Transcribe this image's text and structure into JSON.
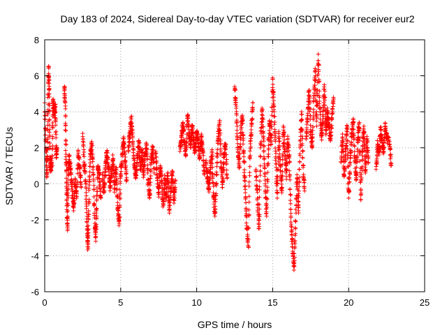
{
  "chart_data": {
    "type": "scatter",
    "title": "Day 183 of 2024, Sidereal Day-to-day VTEC variation (SDTVAR) for receiver eur2",
    "xlabel": "GPS time / hours",
    "ylabel": "SDTVAR / TECUs",
    "xlim": [
      0,
      25
    ],
    "ylim": [
      -6,
      8
    ],
    "x_ticks": [
      0,
      5,
      10,
      15,
      20,
      25
    ],
    "x_tick_labels": [
      "0",
      "5",
      "10",
      "15",
      "20",
      "25"
    ],
    "y_ticks": [
      -6,
      -4,
      -2,
      0,
      2,
      4,
      6,
      8
    ],
    "y_tick_labels": [
      "-6",
      "-4",
      "-2",
      "0",
      "2",
      "4",
      "6",
      "8"
    ],
    "grid": true,
    "marker": "+",
    "marker_color": "#ff0000",
    "grid_color": "#a0a0a0",
    "series": [
      {
        "name": "SDTVAR",
        "segments": [
          [
            [
              0.0,
              4.5
            ],
            [
              0.08,
              2.0
            ],
            [
              0.15,
              0.5
            ],
            [
              0.2,
              3.0
            ],
            [
              0.25,
              6.5
            ],
            [
              0.3,
              5.0
            ],
            [
              0.35,
              1.5
            ],
            [
              0.4,
              0.8
            ],
            [
              0.45,
              1.2
            ]
          ],
          [
            [
              0.5,
              1.0
            ],
            [
              0.55,
              4.5
            ],
            [
              0.6,
              4.2
            ],
            [
              0.65,
              3.8
            ],
            [
              0.7,
              4.4
            ],
            [
              0.75,
              1.6
            ],
            [
              0.8,
              1.9
            ]
          ],
          [
            [
              1.3,
              5.4
            ],
            [
              1.35,
              4.5
            ],
            [
              1.4,
              1.5
            ],
            [
              1.45,
              -0.5
            ],
            [
              1.5,
              -2.6
            ],
            [
              1.55,
              0.5
            ],
            [
              1.6,
              1.5
            ],
            [
              1.7,
              0.8
            ],
            [
              1.8,
              -0.3
            ],
            [
              1.9,
              -1.5
            ],
            [
              2.0,
              0.2
            ],
            [
              2.1,
              -0.8
            ],
            [
              2.2,
              1.8
            ],
            [
              2.3,
              0.9
            ],
            [
              2.4,
              -0.2
            ]
          ],
          [
            [
              2.5,
              2.8
            ],
            [
              2.6,
              1.0
            ],
            [
              2.7,
              0.0
            ],
            [
              2.8,
              -2.5
            ],
            [
              2.85,
              -3.5
            ],
            [
              2.9,
              -1.0
            ],
            [
              3.0,
              1.5
            ],
            [
              3.1,
              2.2
            ],
            [
              3.2,
              0.5
            ],
            [
              3.3,
              -2.2
            ],
            [
              3.35,
              -3.0
            ],
            [
              3.4,
              -1.5
            ],
            [
              3.5,
              1.0
            ],
            [
              3.6,
              0.3
            ],
            [
              3.7,
              -0.8
            ]
          ],
          [
            [
              3.8,
              0.5
            ],
            [
              3.9,
              -0.5
            ],
            [
              4.0,
              1.0
            ],
            [
              4.1,
              1.8
            ],
            [
              4.2,
              0.8
            ],
            [
              4.3,
              -0.2
            ],
            [
              4.4,
              0.6
            ],
            [
              4.5,
              1.4
            ],
            [
              4.6,
              -0.3
            ],
            [
              4.7,
              0.9
            ],
            [
              4.8,
              -1.2
            ],
            [
              4.9,
              -2.2
            ],
            [
              5.0,
              0.5
            ],
            [
              5.1,
              1.6
            ],
            [
              5.2,
              2.5
            ],
            [
              5.3,
              1.2
            ],
            [
              5.4,
              0.2
            ]
          ],
          [
            [
              5.5,
              1.8
            ],
            [
              5.6,
              2.8
            ],
            [
              5.7,
              3.6
            ],
            [
              5.8,
              2.2
            ],
            [
              5.9,
              1.0
            ],
            [
              6.0,
              0.3
            ],
            [
              6.1,
              1.4
            ],
            [
              6.2,
              2.4
            ],
            [
              6.3,
              0.8
            ],
            [
              6.4,
              1.9
            ],
            [
              6.5,
              0.5
            ],
            [
              6.6,
              1.5
            ],
            [
              6.7,
              2.2
            ],
            [
              6.8,
              0.2
            ],
            [
              6.9,
              -0.8
            ],
            [
              7.0,
              1.2
            ],
            [
              7.1,
              2.0
            ],
            [
              7.2,
              0.6
            ]
          ],
          [
            [
              7.3,
              1.8
            ],
            [
              7.4,
              0.5
            ],
            [
              7.5,
              -0.6
            ],
            [
              7.6,
              1.0
            ],
            [
              7.7,
              0.0
            ],
            [
              7.8,
              -1.2
            ],
            [
              7.9,
              0.3
            ],
            [
              8.0,
              -0.8
            ],
            [
              8.1,
              0.6
            ],
            [
              8.2,
              -1.5
            ],
            [
              8.3,
              -0.4
            ],
            [
              8.4,
              0.7
            ],
            [
              8.5,
              -0.9
            ],
            [
              8.6,
              0.2
            ]
          ],
          [
            [
              8.9,
              1.8
            ],
            [
              9.0,
              2.6
            ],
            [
              9.1,
              3.4
            ],
            [
              9.2,
              2.2
            ],
            [
              9.3,
              1.6
            ],
            [
              9.4,
              3.8
            ],
            [
              9.5,
              2.8
            ],
            [
              9.6,
              2.0
            ],
            [
              9.7,
              3.2
            ],
            [
              9.8,
              2.4
            ],
            [
              9.9,
              1.8
            ],
            [
              10.0,
              2.9
            ],
            [
              10.1,
              2.2
            ],
            [
              10.2,
              1.5
            ],
            [
              10.3,
              2.6
            ],
            [
              10.4,
              1.8
            ],
            [
              10.5,
              0.5
            ]
          ],
          [
            [
              10.6,
              1.2
            ],
            [
              10.7,
              0.4
            ],
            [
              10.8,
              -0.3
            ],
            [
              10.9,
              0.8
            ],
            [
              11.0,
              1.8
            ],
            [
              11.1,
              -0.5
            ],
            [
              11.2,
              -1.8
            ],
            [
              11.3,
              0.5
            ],
            [
              11.4,
              2.5
            ],
            [
              11.5,
              3.5
            ],
            [
              11.6,
              1.2
            ],
            [
              11.7,
              -0.2
            ],
            [
              11.8,
              1.6
            ],
            [
              11.9,
              2.2
            ],
            [
              12.0,
              0.3
            ]
          ],
          [
            [
              12.5,
              5.4
            ],
            [
              12.6,
              4.2
            ],
            [
              12.7,
              2.0
            ],
            [
              12.8,
              1.0
            ],
            [
              12.9,
              2.8
            ],
            [
              13.0,
              3.8
            ],
            [
              13.1,
              1.5
            ],
            [
              13.2,
              -0.5
            ],
            [
              13.3,
              -2.5
            ],
            [
              13.4,
              -3.5
            ],
            [
              13.5,
              1.5
            ],
            [
              13.6,
              3.2
            ],
            [
              13.7,
              4.5
            ]
          ],
          [
            [
              13.9,
              0.8
            ],
            [
              14.0,
              -0.8
            ],
            [
              14.1,
              -2.5
            ],
            [
              14.2,
              2.0
            ],
            [
              14.3,
              4.2
            ],
            [
              14.4,
              2.5
            ],
            [
              14.5,
              0.2
            ],
            [
              14.6,
              -1.8
            ],
            [
              14.7,
              1.5
            ],
            [
              14.8,
              3.5
            ],
            [
              14.9,
              2.2
            ],
            [
              15.0,
              5.8
            ],
            [
              15.1,
              4.0
            ],
            [
              15.2,
              1.5
            ],
            [
              15.3,
              -0.8
            ],
            [
              15.4,
              2.8
            ],
            [
              15.5,
              1.0
            ],
            [
              15.6,
              -0.5
            ],
            [
              15.7,
              3.2
            ],
            [
              15.8,
              1.8
            ],
            [
              15.9,
              0.4
            ],
            [
              16.0,
              2.5
            ],
            [
              16.1,
              1.2
            ],
            [
              16.2,
              -1.8
            ],
            [
              16.3,
              -3.5
            ],
            [
              16.4,
              -4.8
            ],
            [
              16.5,
              -2.5
            ],
            [
              16.6,
              0.5
            ],
            [
              16.7,
              -1.5
            ],
            [
              16.8,
              2.0
            ],
            [
              16.9,
              4.0
            ],
            [
              17.0,
              1.0
            ],
            [
              17.1,
              -0.4
            ]
          ],
          [
            [
              17.2,
              2.5
            ],
            [
              17.3,
              3.8
            ],
            [
              17.4,
              5.2
            ],
            [
              17.5,
              3.0
            ],
            [
              17.6,
              2.0
            ],
            [
              17.7,
              4.6
            ],
            [
              17.8,
              6.4
            ],
            [
              17.9,
              3.2
            ],
            [
              18.0,
              7.2
            ],
            [
              18.1,
              4.2
            ],
            [
              18.2,
              2.6
            ],
            [
              18.3,
              3.6
            ],
            [
              18.4,
              5.5
            ],
            [
              18.5,
              2.8
            ],
            [
              18.6,
              4.0
            ],
            [
              18.7,
              3.3
            ],
            [
              18.8,
              2.4
            ],
            [
              18.9,
              3.6
            ],
            [
              19.0,
              4.8
            ]
          ],
          [
            [
              19.5,
              1.2
            ],
            [
              19.6,
              2.6
            ],
            [
              19.7,
              0.4
            ],
            [
              19.8,
              1.8
            ],
            [
              19.9,
              3.2
            ],
            [
              20.0,
              -0.8
            ],
            [
              20.1,
              1.2
            ],
            [
              20.2,
              2.8
            ],
            [
              20.3,
              3.6
            ],
            [
              20.4,
              1.5
            ],
            [
              20.5,
              0.2
            ],
            [
              20.6,
              2.4
            ],
            [
              20.7,
              3.4
            ],
            [
              20.8,
              -0.9
            ],
            [
              20.9,
              1.8
            ],
            [
              21.0,
              3.2
            ],
            [
              21.1,
              0.6
            ],
            [
              21.2,
              2.5
            ],
            [
              21.3,
              1.2
            ]
          ],
          [
            [
              21.8,
              0.8
            ],
            [
              21.9,
              2.2
            ],
            [
              22.0,
              1.6
            ],
            [
              22.1,
              3.0
            ],
            [
              22.2,
              2.4
            ],
            [
              22.3,
              1.8
            ],
            [
              22.4,
              3.2
            ],
            [
              22.5,
              2.6
            ],
            [
              22.7,
              2.2
            ],
            [
              22.8,
              1.0
            ]
          ]
        ]
      }
    ]
  }
}
